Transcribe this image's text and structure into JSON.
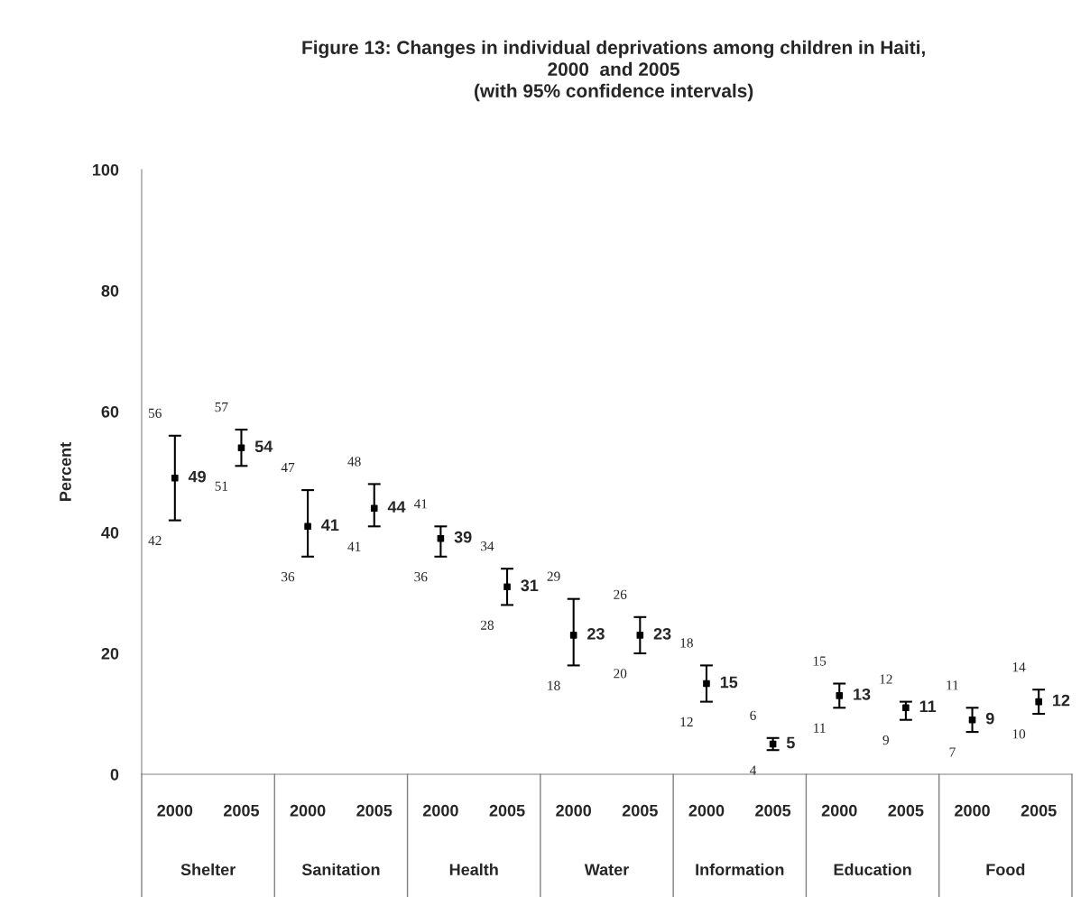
{
  "chart_data": {
    "type": "scatter",
    "title": "Figure 13: Changes in individual deprivations among children in Haiti,\n2000  and 2005\n(with 95% confidence intervals)",
    "ylabel": "Percent",
    "categories": [
      "2000",
      "2005",
      "2000",
      "2005",
      "2000",
      "2005",
      "2000",
      "2005",
      "2000",
      "2005",
      "2000",
      "2005",
      "2000",
      "2005"
    ],
    "values": [
      49,
      54,
      41,
      44,
      39,
      31,
      23,
      23,
      15,
      5,
      13,
      11,
      9,
      12
    ],
    "errors": [
      [
        42,
        56
      ],
      [
        51,
        57
      ],
      [
        36,
        47
      ],
      [
        41,
        48
      ],
      [
        36,
        41
      ],
      [
        28,
        34
      ],
      [
        18,
        29
      ],
      [
        20,
        26
      ],
      [
        12,
        18
      ],
      [
        4,
        6
      ],
      [
        11,
        15
      ],
      [
        9,
        12
      ],
      [
        7,
        11
      ],
      [
        10,
        14
      ]
    ],
    "color": "#000000",
    "marker": "square",
    "data_labels": true,
    "annotations": [
      "Shelter",
      "Sanitation",
      "Health",
      "Water",
      "Information",
      "Education",
      "Food",
      "56",
      "42",
      "57",
      "51",
      "47",
      "36",
      "48",
      "41",
      "41",
      "36",
      "34",
      "28",
      "29",
      "18",
      "26",
      "20",
      "18",
      "12",
      "6",
      "4",
      "15",
      "11",
      "12",
      "9",
      "11",
      "7",
      "14",
      "10"
    ],
    "ylim": [
      0,
      100
    ],
    "yticks": [
      0,
      20,
      40,
      60,
      80,
      100
    ],
    "grid": false,
    "legend": false
  }
}
